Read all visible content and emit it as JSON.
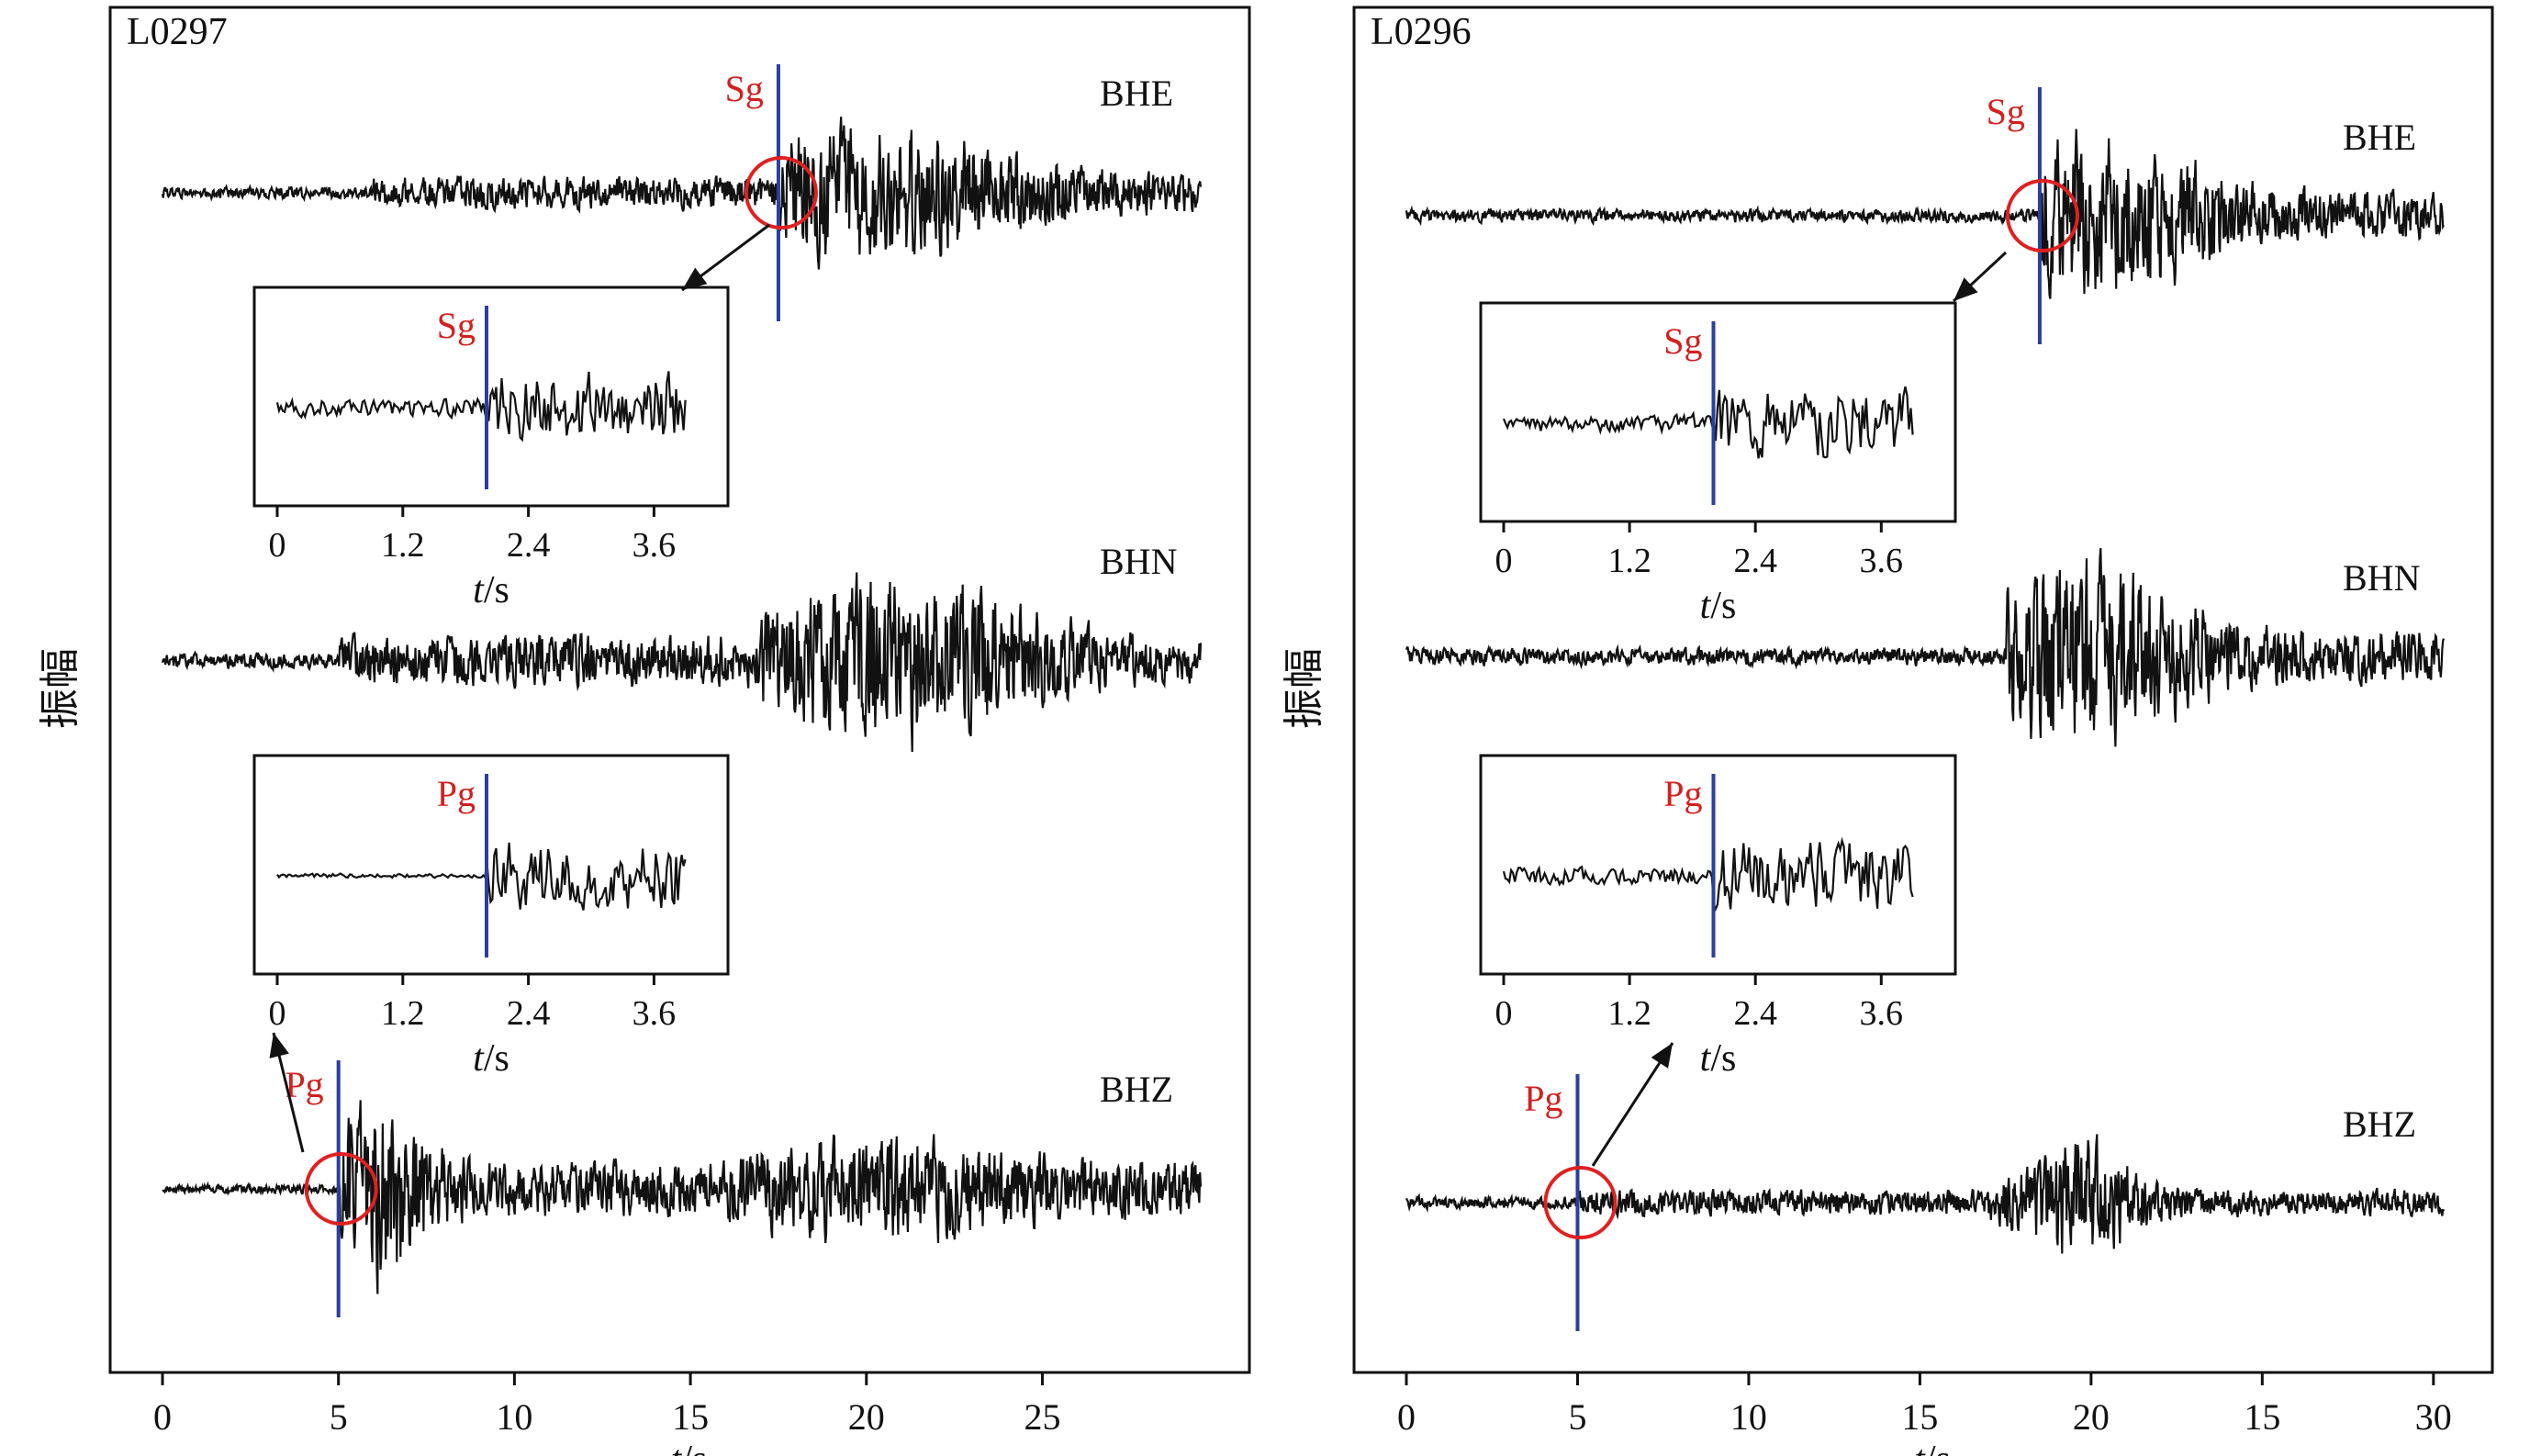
{
  "figure": {
    "y_label": "振幅"
  },
  "colors": {
    "trace": "#111111",
    "pick_line": "#2a3f9e",
    "phase_label": "#d22020",
    "circle": "#e02020",
    "arrow": "#111111"
  },
  "chart_data": [
    {
      "type": "line",
      "station": "L0297",
      "xlabel": "t/s",
      "xlim": [
        -1.5,
        30.9
      ],
      "xticks": [
        "0",
        "5",
        "10",
        "15",
        "20",
        "25"
      ],
      "traces": [
        {
          "channel": "BHE",
          "t_start": 0,
          "t_end": 29.5,
          "pick": {
            "phase": "Sg",
            "t": 17.5
          }
        },
        {
          "channel": "BHN",
          "t_start": 0,
          "t_end": 29.5
        },
        {
          "channel": "BHZ",
          "t_start": 0,
          "t_end": 29.5,
          "pick": {
            "phase": "Pg",
            "t": 5.0
          }
        }
      ],
      "insets": [
        {
          "of": "BHE",
          "phase": "Sg",
          "pick_t": 2.0,
          "xlabel": "t/s",
          "xticks": [
            "0",
            "1.2",
            "2.4",
            "3.6"
          ]
        },
        {
          "of": "BHZ",
          "phase": "Pg",
          "pick_t": 2.0,
          "xlabel": "t/s",
          "xticks": [
            "0",
            "1.2",
            "2.4",
            "3.6"
          ]
        }
      ]
    },
    {
      "type": "line",
      "station": "L0296",
      "xlabel": "t/s",
      "xlim": [
        -1.5,
        31.9
      ],
      "xticks": [
        "0",
        "5",
        "10",
        "15",
        "20",
        "15",
        "30"
      ],
      "traces": [
        {
          "channel": "BHE",
          "t_start": 0,
          "t_end": 30.3,
          "pick": {
            "phase": "Sg",
            "t": 18.5
          }
        },
        {
          "channel": "BHN",
          "t_start": 0,
          "t_end": 30.3
        },
        {
          "channel": "BHZ",
          "t_start": 0,
          "t_end": 30.3,
          "pick": {
            "phase": "Pg",
            "t": 5.0
          }
        }
      ],
      "insets": [
        {
          "of": "BHE",
          "phase": "Sg",
          "pick_t": 2.0,
          "xlabel": "t/s",
          "xticks": [
            "0",
            "1.2",
            "2.4",
            "3.6"
          ]
        },
        {
          "of": "BHZ",
          "phase": "Pg",
          "pick_t": 2.0,
          "xlabel": "t/s",
          "xticks": [
            "0",
            "1.2",
            "2.4",
            "3.6"
          ]
        }
      ]
    }
  ]
}
